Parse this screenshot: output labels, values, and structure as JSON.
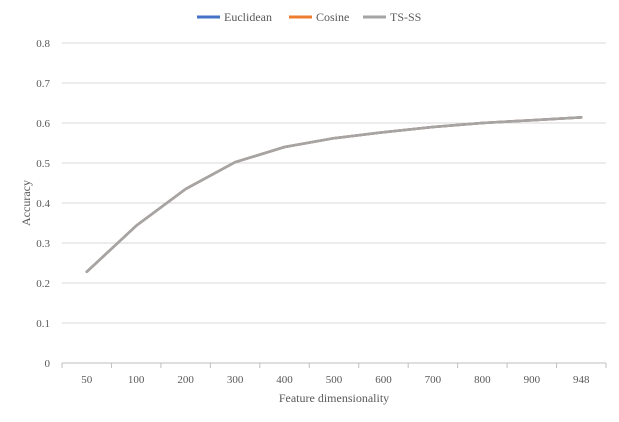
{
  "chart_data": {
    "type": "line",
    "title": "",
    "xlabel": "Feature dimensionality",
    "ylabel": "Accuracy",
    "categories": [
      "50",
      "100",
      "200",
      "300",
      "400",
      "500",
      "600",
      "700",
      "800",
      "900",
      "948"
    ],
    "ylim": [
      0,
      0.8
    ],
    "yticks": [
      0,
      0.1,
      0.2,
      0.3,
      0.4,
      0.5,
      0.6,
      0.7,
      0.8
    ],
    "ytick_labels": [
      "0",
      "0.1",
      "0.2",
      "0.3",
      "0.4",
      "0.5",
      "0.6",
      "0.7",
      "0.8"
    ],
    "grid": true,
    "legend_position": "top-center",
    "series": [
      {
        "name": "Euclidean",
        "color": "#4472C4",
        "values": [
          0.228,
          0.343,
          0.435,
          0.502,
          0.54,
          0.562,
          0.577,
          0.59,
          0.6,
          0.607,
          0.614
        ]
      },
      {
        "name": "Cosine",
        "color": "#ED7D31",
        "values": [
          0.228,
          0.343,
          0.435,
          0.502,
          0.54,
          0.562,
          0.577,
          0.59,
          0.6,
          0.607,
          0.614
        ]
      },
      {
        "name": "TS-SS",
        "color": "#A5A5A5",
        "values": [
          0.228,
          0.343,
          0.435,
          0.502,
          0.54,
          0.562,
          0.577,
          0.59,
          0.6,
          0.607,
          0.614
        ]
      }
    ]
  }
}
